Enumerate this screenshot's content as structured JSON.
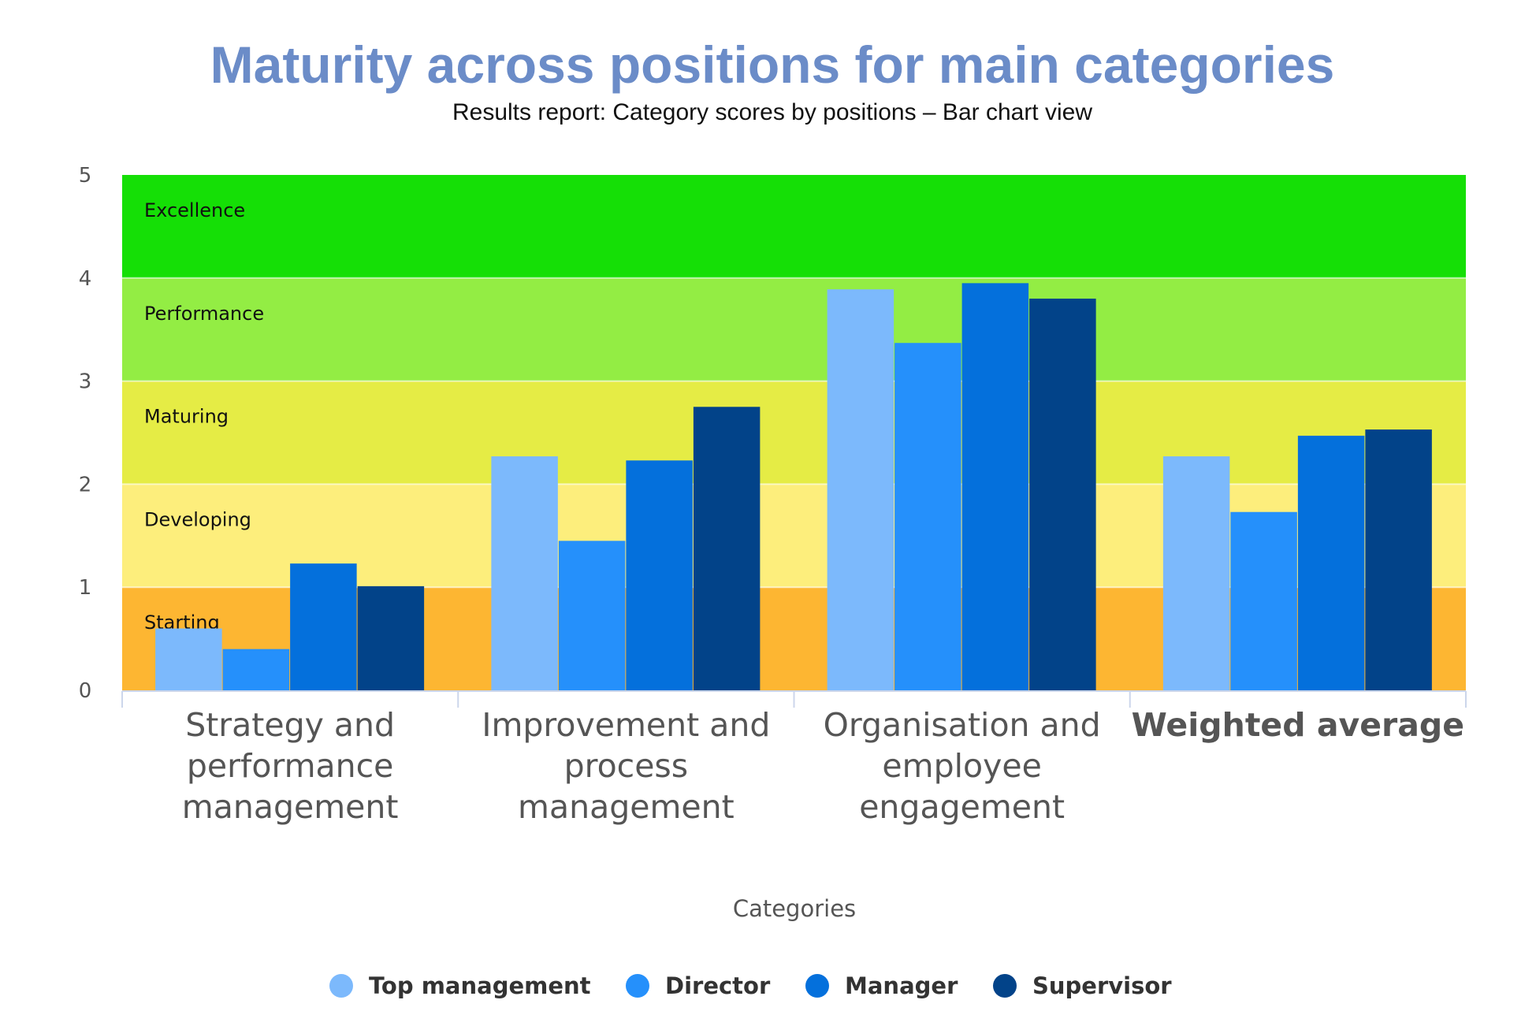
{
  "chart_data": {
    "type": "bar",
    "title": "Maturity across positions for main categories",
    "subtitle": "Results report: Category scores by positions – Bar chart view",
    "xlabel": "Categories",
    "ylabel": "",
    "ylim": [
      0,
      5
    ],
    "yticks": [
      "0",
      "1",
      "2",
      "3",
      "4",
      "5"
    ],
    "categories": [
      [
        "Strategy and",
        "performance",
        "management"
      ],
      [
        "Improvement and",
        "process",
        "management"
      ],
      [
        "Organisation and",
        "employee",
        "engagement"
      ],
      [
        "Weighted average"
      ]
    ],
    "series": [
      {
        "name": "Top management",
        "color": "#7cb9fc",
        "values": [
          0.6,
          2.27,
          3.89,
          2.27
        ]
      },
      {
        "name": "Director",
        "color": "#2590fb",
        "values": [
          0.4,
          1.45,
          3.37,
          1.73
        ]
      },
      {
        "name": "Manager",
        "color": "#0470dc",
        "values": [
          1.23,
          2.23,
          3.95,
          2.47
        ]
      },
      {
        "name": "Supervisor",
        "color": "#024389",
        "values": [
          1.01,
          2.75,
          3.8,
          2.53
        ]
      }
    ],
    "bands": [
      {
        "label": "Starting",
        "from": 0,
        "to": 1,
        "color": "#fdb632"
      },
      {
        "label": "Developing",
        "from": 1,
        "to": 2,
        "color": "#fdee7c"
      },
      {
        "label": "Maturing",
        "from": 2,
        "to": 3,
        "color": "#e5ec45"
      },
      {
        "label": "Performance",
        "from": 3,
        "to": 4,
        "color": "#93ed44"
      },
      {
        "label": "Excellence",
        "from": 4,
        "to": 5,
        "color": "#15df06"
      }
    ],
    "legend": "bottom-center",
    "grid": false
  }
}
